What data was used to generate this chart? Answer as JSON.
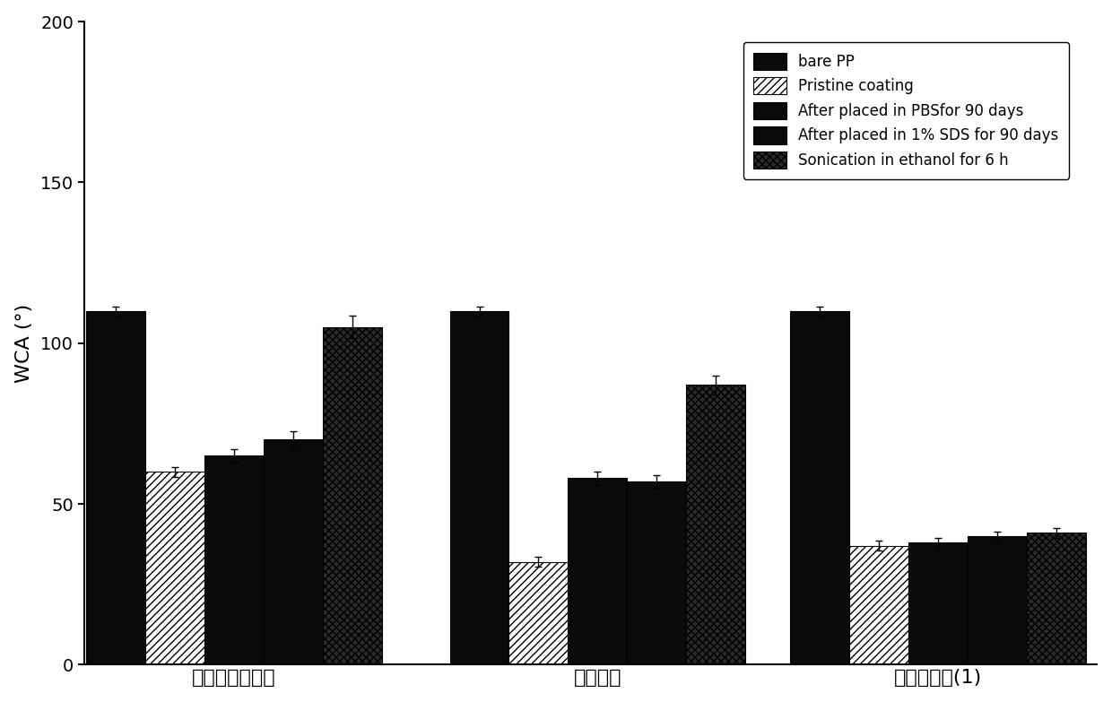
{
  "groups": [
    "纯聚多巴胺涂层",
    "对照涂层",
    "双仿生涂层(1)"
  ],
  "series": [
    {
      "label": "bare PP",
      "facecolor": "#0a0a0a",
      "hatch": null,
      "values": [
        110,
        110,
        110
      ],
      "errors": [
        1.5,
        1.5,
        1.5
      ]
    },
    {
      "label": "Pristine coating",
      "facecolor": "#ffffff",
      "hatch": "////",
      "values": [
        60,
        32,
        37
      ],
      "errors": [
        1.5,
        1.5,
        1.5
      ]
    },
    {
      "label": "After placed in PBSfor 90 days",
      "facecolor": "#0a0a0a",
      "hatch": null,
      "values": [
        65,
        58,
        38
      ],
      "errors": [
        2.0,
        2.0,
        1.5
      ]
    },
    {
      "label": "After placed in 1% SDS for 90 days",
      "facecolor": "#0a0a0a",
      "hatch": null,
      "values": [
        70,
        57,
        40
      ],
      "errors": [
        2.5,
        2.0,
        1.5
      ]
    },
    {
      "label": "Sonication in ethanol for 6 h",
      "facecolor": "#1a1a1a",
      "hatch": "xxxx",
      "values": [
        105,
        87,
        41
      ],
      "errors": [
        3.5,
        3.0,
        1.5
      ]
    }
  ],
  "ylabel": "WCA (°)",
  "ylim": [
    0,
    200
  ],
  "yticks": [
    0,
    50,
    100,
    150,
    200
  ],
  "bar_width": 0.13,
  "group_centers": [
    0.38,
    1.18,
    1.93
  ],
  "xlim": [
    0.05,
    2.28
  ],
  "legend_fontsize": 12,
  "axis_fontsize": 16,
  "tick_fontsize": 14,
  "xlabel_fontsize": 16,
  "background_color": "#ffffff",
  "edge_color": "#000000"
}
